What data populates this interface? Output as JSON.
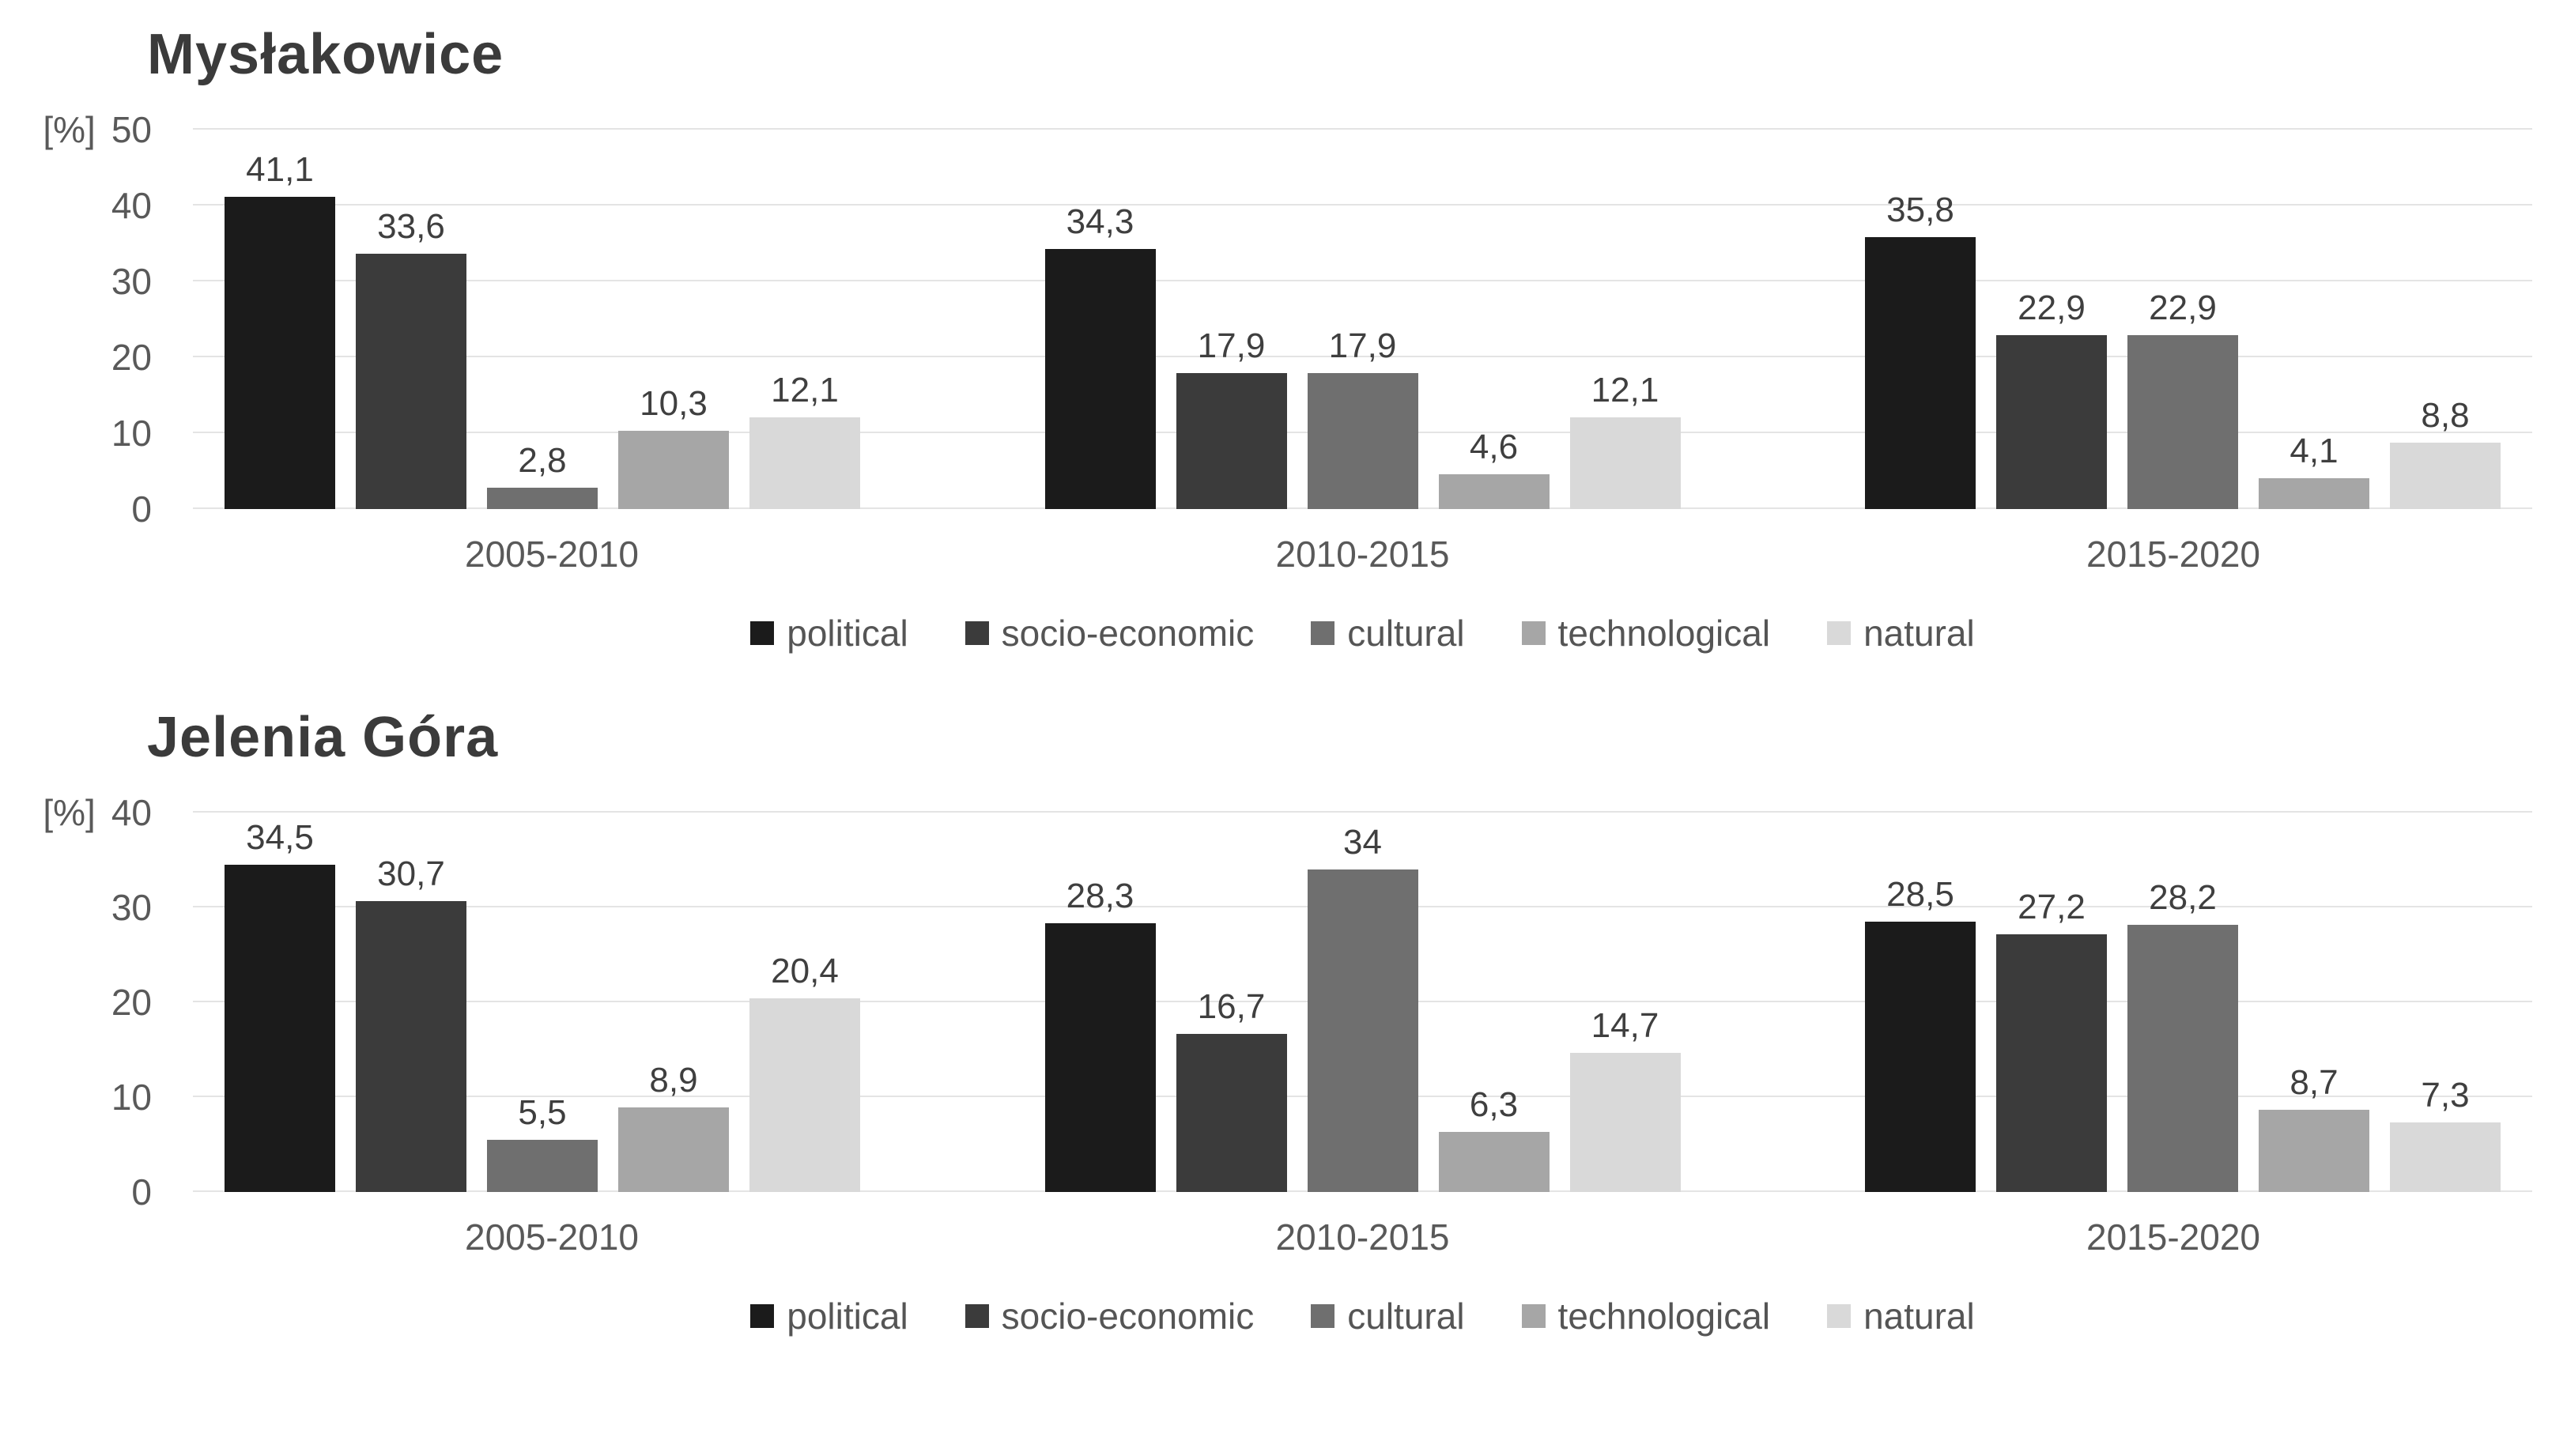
{
  "chart_data": [
    {
      "type": "bar",
      "title": "Mysłakowice",
      "unit": "[%]",
      "ylim": [
        0,
        50
      ],
      "yticks": [
        0,
        10,
        20,
        30,
        40,
        50
      ],
      "grid": true,
      "legend_position": "bottom",
      "categories": [
        "2005-2010",
        "2010-2015",
        "2015-2020"
      ],
      "series": [
        {
          "name": "political",
          "color": "#1b1b1b",
          "values": [
            41.1,
            34.3,
            35.8
          ],
          "labels": [
            "41,1",
            "34,3",
            "35,8"
          ]
        },
        {
          "name": "socio-economic",
          "color": "#3b3b3b",
          "values": [
            33.6,
            17.9,
            22.9
          ],
          "labels": [
            "33,6",
            "17,9",
            "22,9"
          ]
        },
        {
          "name": "cultural",
          "color": "#6f6f6f",
          "values": [
            2.8,
            17.9,
            22.9
          ],
          "labels": [
            "2,8",
            "17,9",
            "22,9"
          ]
        },
        {
          "name": "technological",
          "color": "#a6a6a6",
          "values": [
            10.3,
            4.6,
            4.1
          ],
          "labels": [
            "10,3",
            "4,6",
            "4,1"
          ]
        },
        {
          "name": "natural",
          "color": "#d9d9d9",
          "values": [
            12.1,
            12.1,
            8.8
          ],
          "labels": [
            "12,1",
            "12,1",
            "8,8"
          ]
        }
      ]
    },
    {
      "type": "bar",
      "title": "Jelenia Góra",
      "unit": "[%]",
      "ylim": [
        0,
        40
      ],
      "yticks": [
        0,
        10,
        20,
        30,
        40
      ],
      "grid": true,
      "legend_position": "bottom",
      "categories": [
        "2005-2010",
        "2010-2015",
        "2015-2020"
      ],
      "series": [
        {
          "name": "political",
          "color": "#1b1b1b",
          "values": [
            34.5,
            28.3,
            28.5
          ],
          "labels": [
            "34,5",
            "28,3",
            "28,5"
          ]
        },
        {
          "name": "socio-economic",
          "color": "#3b3b3b",
          "values": [
            30.7,
            16.7,
            27.2
          ],
          "labels": [
            "30,7",
            "16,7",
            "27,2"
          ]
        },
        {
          "name": "cultural",
          "color": "#6f6f6f",
          "values": [
            5.5,
            34,
            28.2
          ],
          "labels": [
            "5,5",
            "34",
            "28,2"
          ]
        },
        {
          "name": "technological",
          "color": "#a6a6a6",
          "values": [
            8.9,
            6.3,
            8.7
          ],
          "labels": [
            "8,9",
            "6,3",
            "8,7"
          ]
        },
        {
          "name": "natural",
          "color": "#d9d9d9",
          "values": [
            20.4,
            14.7,
            7.3
          ],
          "labels": [
            "20,4",
            "14,7",
            "7,3"
          ]
        }
      ]
    }
  ]
}
